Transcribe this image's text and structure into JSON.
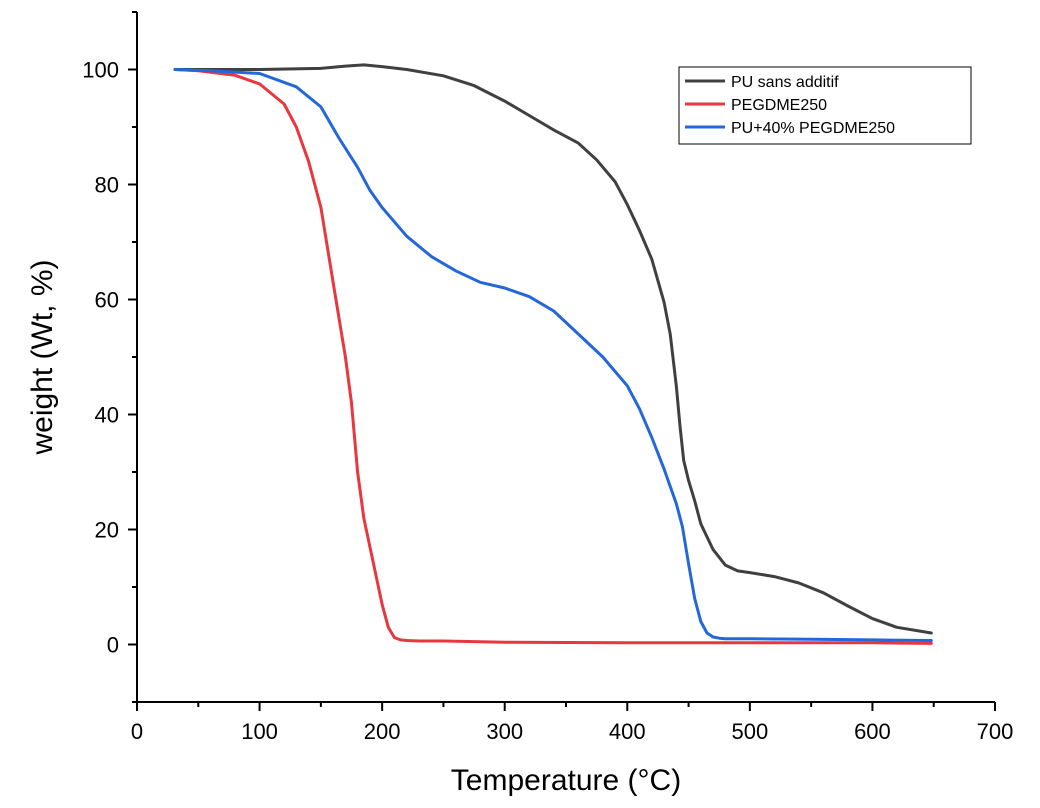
{
  "chart_data": {
    "type": "line",
    "title": "",
    "xlabel": "Temperature (°C)",
    "ylabel": "weight (Wt, %)",
    "xlim": [
      0,
      700
    ],
    "ylim": [
      -10,
      110
    ],
    "x_ticks": [
      0,
      100,
      200,
      300,
      400,
      500,
      600,
      700
    ],
    "y_ticks": [
      0,
      20,
      40,
      60,
      80,
      100
    ],
    "grid": false,
    "legend_position": "top-right",
    "series": [
      {
        "name": "PU sans additif",
        "color": "#404040",
        "x": [
          31,
          50,
          100,
          150,
          170,
          185,
          200,
          220,
          250,
          275,
          300,
          320,
          340,
          360,
          375,
          390,
          400,
          410,
          420,
          430,
          435,
          440,
          443,
          446,
          450,
          455,
          460,
          470,
          480,
          490,
          500,
          520,
          540,
          560,
          580,
          600,
          620,
          648
        ],
        "y": [
          100,
          100,
          100,
          100.2,
          100.6,
          100.8,
          100.5,
          100,
          98.9,
          97.2,
          94.5,
          92,
          89.5,
          87.2,
          84.3,
          80.5,
          76.5,
          72,
          67,
          59.5,
          54,
          45,
          38,
          32,
          28.5,
          25,
          21,
          16.5,
          13.8,
          12.8,
          12.5,
          11.8,
          10.7,
          9,
          6.7,
          4.5,
          3,
          2
        ]
      },
      {
        "name": "PEGDME250",
        "color": "#e8373f",
        "x": [
          31,
          50,
          80,
          100,
          120,
          130,
          140,
          150,
          160,
          170,
          175,
          180,
          185,
          190,
          195,
          200,
          205,
          210,
          215,
          220,
          230,
          250,
          300,
          400,
          500,
          600,
          648
        ],
        "y": [
          100,
          99.8,
          99,
          97.5,
          94,
          90,
          84,
          76,
          63,
          50,
          42,
          30,
          22,
          17,
          12,
          7,
          3,
          1.2,
          0.8,
          0.7,
          0.6,
          0.6,
          0.4,
          0.3,
          0.3,
          0.3,
          0.2
        ]
      },
      {
        "name": "PU+40% PEGDME250",
        "color": "#2367d9",
        "x": [
          31,
          60,
          100,
          130,
          150,
          165,
          180,
          190,
          200,
          220,
          240,
          260,
          280,
          300,
          320,
          340,
          360,
          380,
          400,
          410,
          420,
          430,
          440,
          445,
          450,
          455,
          460,
          465,
          470,
          475,
          480,
          500,
          550,
          600,
          648
        ],
        "y": [
          100,
          99.8,
          99.3,
          97,
          93.5,
          88,
          83,
          79,
          76,
          71,
          67.5,
          65,
          63,
          62,
          60.5,
          58,
          54,
          50,
          45,
          41,
          36,
          30.5,
          24.5,
          20.5,
          14,
          8,
          4,
          2,
          1.3,
          1.1,
          1,
          1,
          0.9,
          0.8,
          0.7
        ]
      }
    ]
  }
}
